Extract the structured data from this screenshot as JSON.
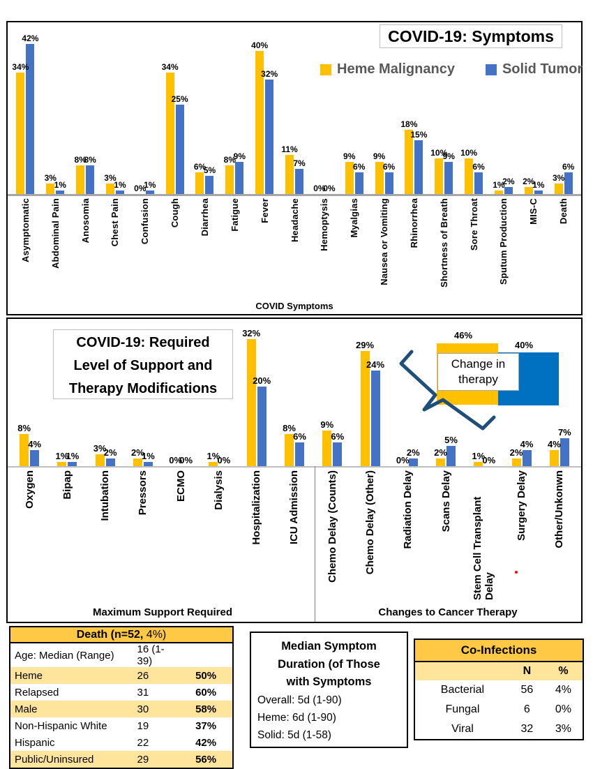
{
  "colors": {
    "heme": "#FFC000",
    "solid": "#4472C4",
    "annotation_solid": "#0070C0",
    "axis_chart1": "#A6A6A6",
    "axis_chart2": "#BFBFBF",
    "legend_text": "#595959",
    "table_header_gold": "#FFC845",
    "table_band_gold": "#FFE49B",
    "brace": "#1F4E79",
    "red_dot": "#FF0000"
  },
  "chart_data": [
    {
      "type": "bar",
      "title": "COVID-19: Symptoms",
      "xlabel": "COVID Symptoms",
      "ylabel": "",
      "ylim": [
        0,
        45
      ],
      "grid": false,
      "legend_position": "top-right",
      "labels_suffix": "%",
      "categories": [
        "Asymptomatic",
        "Abdominal Pain",
        "Anosomia",
        "Chest Pain",
        "Confusion",
        "Cough",
        "Diarrhea",
        "Fatigue",
        "Fever",
        "Headache",
        "Hemoptysis",
        "Myalgias",
        "Nausea or Vomiting",
        "Rhinorrhea",
        "Shortness of Breath",
        "Sore Throat",
        "Sputum Production",
        "MIS-C",
        "Death"
      ],
      "series": [
        {
          "name": "Heme Malignancy",
          "values": [
            34,
            3,
            8,
            3,
            0,
            34,
            6,
            8,
            40,
            11,
            0,
            9,
            9,
            18,
            10,
            10,
            1,
            2,
            3
          ]
        },
        {
          "name": "Solid Tumor",
          "values": [
            42,
            1,
            8,
            1,
            1,
            25,
            5,
            9,
            32,
            7,
            0,
            6,
            6,
            15,
            9,
            6,
            2,
            1,
            6
          ]
        }
      ]
    },
    {
      "type": "bar",
      "title": "COVID-19: Required Level of Support and Therapy Modifications",
      "title_lines": [
        "COVID-19: Required",
        "Level of Support and",
        "Therapy Modifications"
      ],
      "xlabel": "",
      "ylim": [
        0,
        35
      ],
      "grid": false,
      "labels_suffix": "%",
      "categories": [
        "Oxygen",
        "Bipap",
        "Intubation",
        "Pressors",
        "ECMO",
        "Dialysis",
        "Hospitalization",
        "ICU Admission",
        "Chemo Delay (Counts)",
        "Chemo Delay (Other)",
        "Radiation Delay",
        "Scans Delay",
        "Stem Cell Transplant Delay",
        "Surgery Delay",
        "Other/Unkonwn"
      ],
      "series": [
        {
          "name": "Heme Malignancy",
          "values": [
            8,
            1,
            3,
            2,
            0,
            1,
            32,
            8,
            9,
            29,
            0,
            2,
            1,
            2,
            4
          ]
        },
        {
          "name": "Solid Tumor",
          "values": [
            4,
            1,
            2,
            1,
            0,
            0,
            20,
            6,
            6,
            24,
            2,
            5,
            0,
            4,
            7
          ]
        }
      ],
      "groups": [
        {
          "label": "Maximum Support Required",
          "count": 8
        },
        {
          "label": "Changes to Cancer Therapy",
          "count": 7
        }
      ],
      "annotation": {
        "label": "Change in therapy",
        "heme_value": "46%",
        "solid_value": "40%"
      }
    }
  ],
  "death_table": {
    "header": {
      "prefix": "Death (",
      "bold": "n=52,",
      "suffix": " 4%)"
    },
    "rows": [
      {
        "label": "Age: Median (Range)",
        "value": "16 (1-39)",
        "pct": "",
        "band": false
      },
      {
        "label": "Heme",
        "value": "26",
        "pct": "50%",
        "band": true
      },
      {
        "label": "Relapsed",
        "value": "31",
        "pct": "60%",
        "band": false
      },
      {
        "label": "Male",
        "value": "30",
        "pct": "58%",
        "band": true
      },
      {
        "label": "Non-Hispanic White",
        "value": "19",
        "pct": "37%",
        "band": false
      },
      {
        "label": "Hispanic",
        "value": "22",
        "pct": "42%",
        "band": false
      },
      {
        "label": "Public/Uninsured",
        "value": "29",
        "pct": "56%",
        "band": true
      }
    ]
  },
  "duration_box": {
    "title_lines": [
      "Median Symptom",
      "Duration (of Those",
      "with Symptoms"
    ],
    "lines": [
      "Overall: 5d (1-90)",
      "Heme:  6d (1-90)",
      "Solid: 5d (1-58)"
    ]
  },
  "coinfections_table": {
    "title": "Co-Infections",
    "col_n": "N",
    "col_pct": "%",
    "rows": [
      {
        "label": "Bacterial",
        "n": "56",
        "pct": "4%"
      },
      {
        "label": "Fungal",
        "n": "6",
        "pct": "0%"
      },
      {
        "label": "Viral",
        "n": "32",
        "pct": "3%"
      }
    ]
  }
}
